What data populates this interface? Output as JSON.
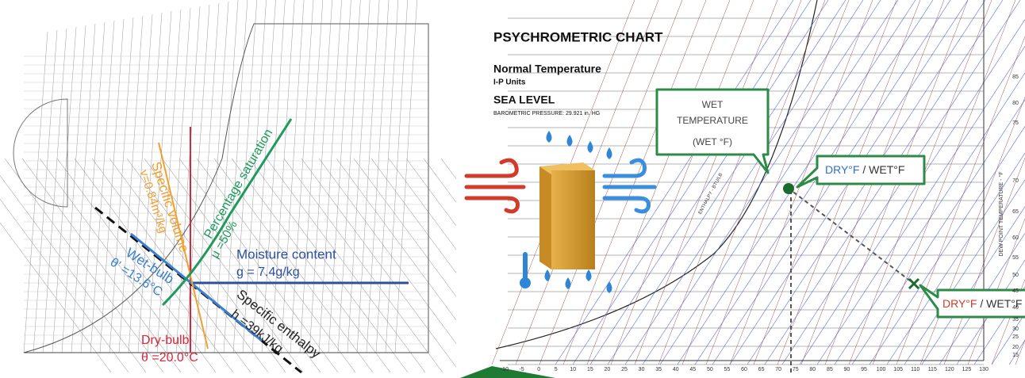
{
  "left_chart": {
    "specific_volume": {
      "label": "Specific volume",
      "value": "v=0.84m³/kg"
    },
    "wet_bulb": {
      "label": "Wet-bulb",
      "value": "θ' =13.6°C"
    },
    "percentage_saturation": {
      "label": "Percentage saturation",
      "value": "μ =50%"
    },
    "moisture_content": {
      "label": "Moisture content",
      "value": "g = 7.4g/kg"
    },
    "specific_enthalpy": {
      "label": "Specific enthalpy",
      "value": "h =39kJ/kg"
    },
    "dry_bulb": {
      "label": "Dry-bulb",
      "value": "θ =20.0°C"
    }
  },
  "right_chart": {
    "title": "PSYCHROMETRIC CHART",
    "subtitle": "Normal Temperature",
    "units": "I-P Units",
    "elevation": "SEA LEVEL",
    "pressure": "BAROMETRIC PRESSURE: 29.921 in. HG",
    "wet_callout": {
      "line1": "WET",
      "line2": "TEMPERATURE",
      "line3": "(WET °F)"
    },
    "point_callouts": [
      {
        "dry": "DRY°F",
        "wet": " / WET°F"
      },
      {
        "dry": "DRY°F",
        "wet": " / WET°F"
      }
    ],
    "x_ticks": [
      -10,
      -5,
      0,
      5,
      10,
      15,
      20,
      25,
      30,
      35,
      40,
      45,
      50,
      55,
      60,
      65,
      70,
      75,
      80,
      85,
      90,
      95,
      100,
      105,
      110,
      115,
      120,
      125,
      130
    ],
    "dew_point_ticks": [
      85,
      80,
      75,
      70,
      65,
      60,
      55,
      50,
      45,
      40,
      35,
      30,
      25,
      20,
      15
    ],
    "dew_point_label": "DEW POINT TEMPERATURE - °F",
    "enthalpy_label": "ENTHALPY - BTU/LB"
  }
}
